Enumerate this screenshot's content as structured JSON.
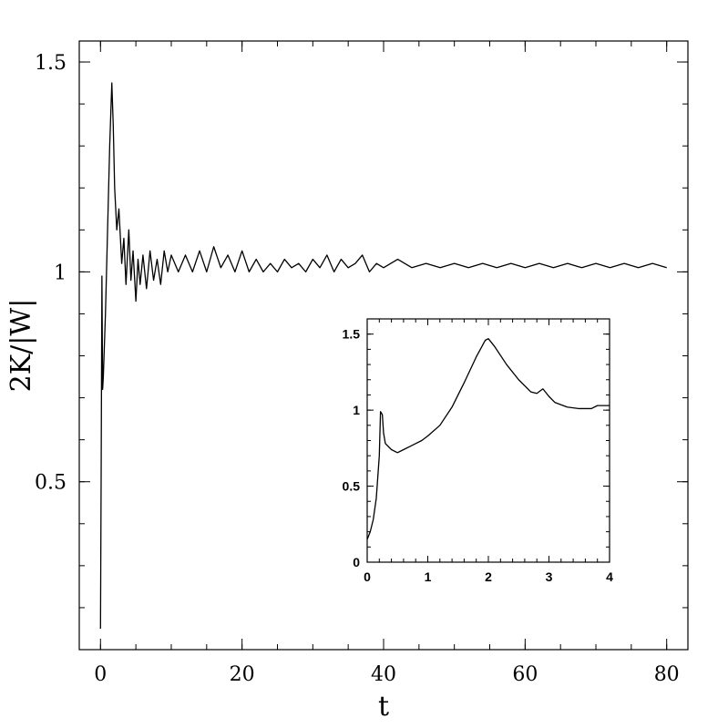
{
  "chart_data": [
    {
      "type": "line",
      "title": "",
      "xlabel": "t",
      "ylabel": "2K/|W|",
      "xlim": [
        -3,
        83
      ],
      "ylim": [
        0.1,
        1.55
      ],
      "xticks": [
        0,
        20,
        40,
        60,
        80
      ],
      "xtick_labels": [
        "0",
        "20",
        "40",
        "60",
        "80"
      ],
      "yticks": [
        0.5,
        1,
        1.5
      ],
      "ytick_labels": [
        "0.5",
        "1",
        "1.5"
      ],
      "grid": false,
      "series": [
        {
          "x": [
            0,
            0.1,
            0.2,
            0.3,
            0.4,
            0.5,
            0.7,
            1.0,
            1.3,
            1.6,
            1.8,
            2.0,
            2.3,
            2.6,
            3.0,
            3.3,
            3.6,
            4.0,
            4.3,
            4.6,
            5.0,
            5.3,
            5.6,
            6.0,
            6.5,
            7.0,
            7.5,
            8.0,
            8.5,
            9.0,
            9.5,
            10,
            11,
            12,
            13,
            14,
            15,
            16,
            17,
            18,
            19,
            20,
            21,
            22,
            23,
            24,
            25,
            26,
            27,
            28,
            29,
            30,
            31,
            32,
            33,
            34,
            35,
            36,
            37,
            38,
            39,
            40,
            42,
            44,
            46,
            48,
            50,
            52,
            54,
            56,
            58,
            60,
            62,
            64,
            66,
            68,
            70,
            72,
            74,
            76,
            78,
            80
          ],
          "y": [
            0.15,
            0.55,
            0.99,
            0.72,
            0.75,
            0.8,
            0.9,
            1.1,
            1.3,
            1.45,
            1.35,
            1.2,
            1.1,
            1.15,
            1.02,
            1.08,
            0.97,
            1.1,
            0.98,
            1.05,
            0.93,
            1.03,
            0.97,
            1.04,
            0.96,
            1.05,
            0.98,
            1.03,
            0.97,
            1.05,
            1.0,
            1.04,
            1.0,
            1.04,
            1.0,
            1.05,
            1.0,
            1.06,
            1.01,
            1.04,
            1.0,
            1.05,
            1.0,
            1.03,
            1.0,
            1.02,
            1.0,
            1.03,
            1.01,
            1.02,
            1.0,
            1.03,
            1.01,
            1.04,
            1.0,
            1.03,
            1.01,
            1.02,
            1.04,
            1.0,
            1.02,
            1.01,
            1.03,
            1.01,
            1.02,
            1.01,
            1.02,
            1.01,
            1.02,
            1.01,
            1.02,
            1.01,
            1.02,
            1.01,
            1.02,
            1.01,
            1.02,
            1.01,
            1.02,
            1.01,
            1.02,
            1.01
          ]
        }
      ]
    },
    {
      "type": "line",
      "title": "",
      "xlabel": "",
      "ylabel": "",
      "xlim": [
        0,
        4
      ],
      "ylim": [
        0,
        1.6
      ],
      "xticks": [
        0,
        1,
        2,
        3,
        4
      ],
      "xtick_labels": [
        "0",
        "1",
        "2",
        "3",
        "4"
      ],
      "yticks": [
        0,
        0.5,
        1,
        1.5
      ],
      "ytick_labels": [
        "0",
        "0.5",
        "1",
        "1.5"
      ],
      "grid": false,
      "series": [
        {
          "x": [
            0,
            0.05,
            0.1,
            0.15,
            0.2,
            0.22,
            0.25,
            0.27,
            0.3,
            0.4,
            0.5,
            0.6,
            0.7,
            0.8,
            0.9,
            1.0,
            1.2,
            1.4,
            1.6,
            1.8,
            1.95,
            2.0,
            2.1,
            2.3,
            2.5,
            2.7,
            2.8,
            2.9,
            3.0,
            3.1,
            3.3,
            3.5,
            3.7,
            3.8,
            3.9,
            4.0
          ],
          "y": [
            0.15,
            0.2,
            0.28,
            0.42,
            0.7,
            0.99,
            0.97,
            0.85,
            0.78,
            0.74,
            0.72,
            0.74,
            0.76,
            0.78,
            0.8,
            0.83,
            0.9,
            1.02,
            1.18,
            1.35,
            1.46,
            1.47,
            1.42,
            1.3,
            1.2,
            1.12,
            1.11,
            1.14,
            1.09,
            1.05,
            1.02,
            1.01,
            1.01,
            1.03,
            1.03,
            1.03
          ]
        }
      ]
    }
  ]
}
